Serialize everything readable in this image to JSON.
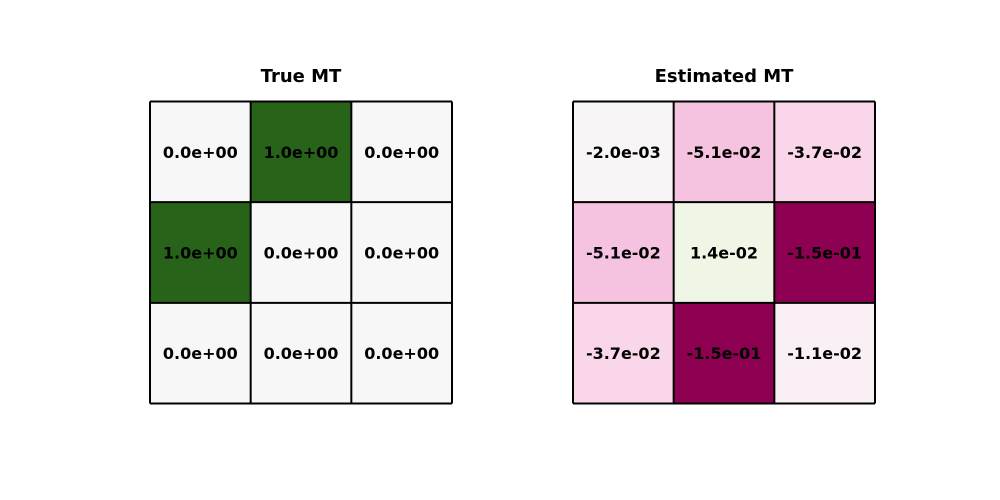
{
  "chart_data": [
    {
      "type": "heatmap",
      "title": "True MT",
      "colormap": "PiYG (diverging, centered at 0)",
      "values": [
        [
          0.0,
          1.0,
          0.0
        ],
        [
          1.0,
          0.0,
          0.0
        ],
        [
          0.0,
          0.0,
          0.0
        ]
      ],
      "labels": [
        [
          "0.0e+00",
          "1.0e+00",
          "0.0e+00"
        ],
        [
          "1.0e+00",
          "0.0e+00",
          "0.0e+00"
        ],
        [
          "0.0e+00",
          "0.0e+00",
          "0.0e+00"
        ]
      ],
      "xlabel": "",
      "ylabel": ""
    },
    {
      "type": "heatmap",
      "title": "Estimated MT",
      "colormap": "PiYG (diverging, centered at 0)",
      "values": [
        [
          -0.002,
          -0.051,
          -0.037
        ],
        [
          -0.051,
          0.014,
          -0.15
        ],
        [
          -0.037,
          -0.15,
          -0.011
        ]
      ],
      "labels": [
        [
          "-2.0e-03",
          "-5.1e-02",
          "-3.7e-02"
        ],
        [
          "-5.1e-02",
          "1.4e-02",
          "-1.5e-01"
        ],
        [
          "-3.7e-02",
          "-1.5e-01",
          "-1.1e-02"
        ]
      ],
      "xlabel": "",
      "ylabel": ""
    }
  ],
  "colors": {
    "center": "#f7f7f7",
    "positive_max": "#276419",
    "negative_max": "#8e0152",
    "grid": "#000000"
  }
}
